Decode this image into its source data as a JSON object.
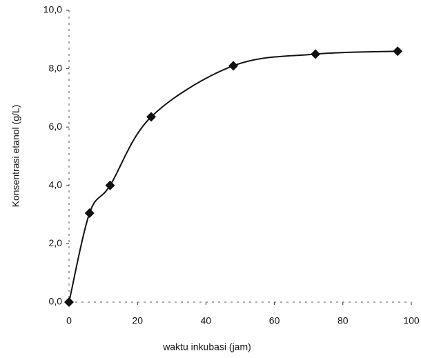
{
  "chart_data": {
    "type": "line",
    "x_label": "waktu inkubasi (jam)",
    "y_label": "Konsentrasi etanol (g/L)",
    "x": [
      0,
      6,
      12,
      24,
      48,
      72,
      96
    ],
    "series": [
      {
        "color": "#111111",
        "values": [
          0.0,
          3.05,
          4.0,
          6.35,
          8.1,
          8.5,
          8.6
        ]
      }
    ],
    "xlim": [
      0,
      100
    ],
    "xticks": [
      0,
      20,
      40,
      60,
      80,
      100
    ],
    "ylim": [
      0,
      10
    ],
    "yticks": [
      {
        "value": 0,
        "label": "0,0"
      },
      {
        "value": 2,
        "label": "2,0"
      },
      {
        "value": 4,
        "label": "4,0"
      },
      {
        "value": 6,
        "label": "6,0"
      },
      {
        "value": 8,
        "label": "8,0"
      },
      {
        "value": 10,
        "label": "10,0"
      }
    ],
    "grid": false
  }
}
